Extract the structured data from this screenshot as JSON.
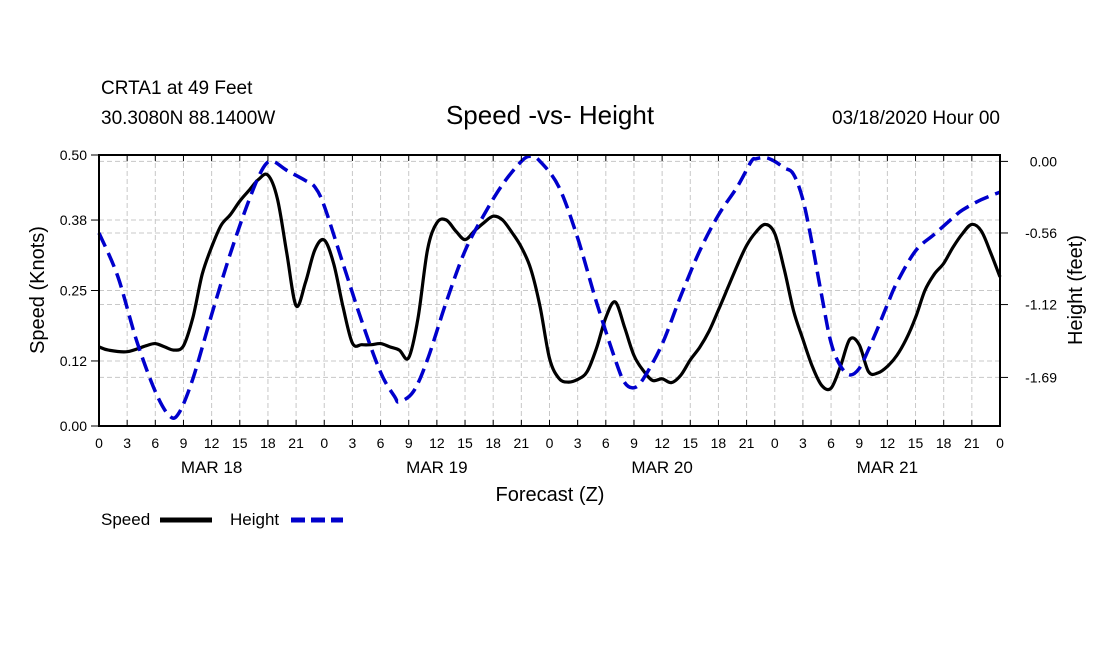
{
  "header": {
    "station": "CRTA1 at 49 Feet",
    "location": "30.3080N 88.1400W",
    "title": "Speed -vs- Height",
    "issued": "03/18/2020 Hour 00"
  },
  "colors": {
    "speed": "#000000",
    "height": "#0000cc",
    "grid": "#c8c8c8"
  },
  "chart_data": {
    "type": "line",
    "title": "Speed -vs- Height",
    "xlabel": "Forecast (Z)",
    "ylabel": "Speed (Knots)",
    "y2label": "Height (feet)",
    "xlim": [
      0,
      96
    ],
    "ylim": [
      0,
      0.5
    ],
    "y2lim": [
      -2.07,
      0.05
    ],
    "x_ticks": [
      0,
      3,
      6,
      9,
      12,
      15,
      18,
      21,
      24,
      27,
      30,
      33,
      36,
      39,
      42,
      45,
      48,
      51,
      54,
      57,
      60,
      63,
      66,
      69,
      72,
      75,
      78,
      81,
      84,
      87,
      90,
      93,
      96
    ],
    "x_tick_labels": [
      "0",
      "3",
      "6",
      "9",
      "12",
      "15",
      "18",
      "21",
      "0",
      "3",
      "6",
      "9",
      "12",
      "15",
      "18",
      "21",
      "0",
      "3",
      "6",
      "9",
      "12",
      "15",
      "18",
      "21",
      "0",
      "3",
      "6",
      "9",
      "12",
      "15",
      "18",
      "21",
      "0"
    ],
    "day_labels": [
      {
        "x": 12,
        "label": "MAR 18"
      },
      {
        "x": 36,
        "label": "MAR 19"
      },
      {
        "x": 60,
        "label": "MAR 20"
      },
      {
        "x": 84,
        "label": "MAR 21"
      }
    ],
    "y_ticks": [
      0.0,
      0.12,
      0.25,
      0.38,
      0.5
    ],
    "y_tick_labels": [
      "0.00",
      "0.12",
      "0.25",
      "0.38",
      "0.50"
    ],
    "y2_ticks": [
      0.0,
      -0.56,
      -1.12,
      -1.69
    ],
    "y2_tick_labels": [
      "0.00",
      "-0.56",
      "-1.12",
      "-1.69"
    ],
    "series": [
      {
        "name": "Speed",
        "axis": "left",
        "style": "solid",
        "points": [
          [
            0,
            0.146
          ],
          [
            1,
            0.14
          ],
          [
            3,
            0.137
          ],
          [
            5,
            0.148
          ],
          [
            6,
            0.152
          ],
          [
            7,
            0.146
          ],
          [
            8,
            0.14
          ],
          [
            9,
            0.148
          ],
          [
            10,
            0.2
          ],
          [
            11,
            0.28
          ],
          [
            12,
            0.33
          ],
          [
            13,
            0.37
          ],
          [
            14,
            0.39
          ],
          [
            15,
            0.415
          ],
          [
            16,
            0.435
          ],
          [
            17,
            0.455
          ],
          [
            18,
            0.463
          ],
          [
            19,
            0.42
          ],
          [
            20,
            0.32
          ],
          [
            21,
            0.222
          ],
          [
            22,
            0.265
          ],
          [
            23,
            0.325
          ],
          [
            24,
            0.343
          ],
          [
            25,
            0.3
          ],
          [
            26,
            0.22
          ],
          [
            27,
            0.153
          ],
          [
            28,
            0.15
          ],
          [
            29,
            0.15
          ],
          [
            30,
            0.152
          ],
          [
            31,
            0.146
          ],
          [
            32,
            0.14
          ],
          [
            33,
            0.126
          ],
          [
            34,
            0.2
          ],
          [
            35,
            0.325
          ],
          [
            36,
            0.375
          ],
          [
            37,
            0.38
          ],
          [
            38,
            0.36
          ],
          [
            39,
            0.344
          ],
          [
            40,
            0.36
          ],
          [
            41,
            0.375
          ],
          [
            42,
            0.387
          ],
          [
            43,
            0.38
          ],
          [
            44,
            0.357
          ],
          [
            45,
            0.33
          ],
          [
            46,
            0.29
          ],
          [
            47,
            0.22
          ],
          [
            48,
            0.125
          ],
          [
            49,
            0.088
          ],
          [
            50,
            0.081
          ],
          [
            51,
            0.086
          ],
          [
            52,
            0.1
          ],
          [
            53,
            0.143
          ],
          [
            54,
            0.2
          ],
          [
            55,
            0.229
          ],
          [
            56,
            0.182
          ],
          [
            57,
            0.13
          ],
          [
            58,
            0.102
          ],
          [
            59,
            0.084
          ],
          [
            60,
            0.087
          ],
          [
            61,
            0.08
          ],
          [
            62,
            0.094
          ],
          [
            63,
            0.122
          ],
          [
            64,
            0.145
          ],
          [
            65,
            0.175
          ],
          [
            66,
            0.214
          ],
          [
            67,
            0.255
          ],
          [
            68,
            0.296
          ],
          [
            69,
            0.333
          ],
          [
            70,
            0.358
          ],
          [
            71,
            0.372
          ],
          [
            72,
            0.355
          ],
          [
            73,
            0.29
          ],
          [
            74,
            0.213
          ],
          [
            75,
            0.16
          ],
          [
            76,
            0.11
          ],
          [
            77,
            0.075
          ],
          [
            78,
            0.07
          ],
          [
            79,
            0.11
          ],
          [
            80,
            0.16
          ],
          [
            81,
            0.15
          ],
          [
            82,
            0.1
          ],
          [
            83,
            0.098
          ],
          [
            84,
            0.11
          ],
          [
            85,
            0.13
          ],
          [
            86,
            0.16
          ],
          [
            87,
            0.2
          ],
          [
            88,
            0.25
          ],
          [
            89,
            0.28
          ],
          [
            90,
            0.3
          ],
          [
            91,
            0.33
          ],
          [
            92,
            0.355
          ],
          [
            93,
            0.372
          ],
          [
            94,
            0.36
          ],
          [
            95,
            0.32
          ],
          [
            96,
            0.275
          ]
        ]
      },
      {
        "name": "Height",
        "axis": "right",
        "style": "dashed",
        "points": [
          [
            0,
            -0.56
          ],
          [
            2,
            -0.9
          ],
          [
            4,
            -1.4
          ],
          [
            6,
            -1.8
          ],
          [
            7.5,
            -1.99
          ],
          [
            8.5,
            -1.97
          ],
          [
            10,
            -1.7
          ],
          [
            12,
            -1.2
          ],
          [
            14,
            -0.72
          ],
          [
            16,
            -0.3
          ],
          [
            17.5,
            -0.05
          ],
          [
            18.5,
            0.0
          ],
          [
            20,
            -0.07
          ],
          [
            22,
            -0.15
          ],
          [
            23,
            -0.2
          ],
          [
            24,
            -0.35
          ],
          [
            26,
            -0.8
          ],
          [
            28,
            -1.25
          ],
          [
            30,
            -1.65
          ],
          [
            31.5,
            -1.84
          ],
          [
            32,
            -1.88
          ],
          [
            33.5,
            -1.8
          ],
          [
            35,
            -1.55
          ],
          [
            37,
            -1.1
          ],
          [
            39,
            -0.7
          ],
          [
            41,
            -0.42
          ],
          [
            43,
            -0.18
          ],
          [
            45,
            0.0
          ],
          [
            46,
            0.04
          ],
          [
            47,
            0.0
          ],
          [
            49,
            -0.2
          ],
          [
            51,
            -0.6
          ],
          [
            53,
            -1.1
          ],
          [
            55,
            -1.55
          ],
          [
            56,
            -1.73
          ],
          [
            57,
            -1.77
          ],
          [
            58,
            -1.7
          ],
          [
            60,
            -1.43
          ],
          [
            62,
            -1.05
          ],
          [
            64,
            -0.7
          ],
          [
            66,
            -0.42
          ],
          [
            68,
            -0.2
          ],
          [
            69.5,
            0.0
          ],
          [
            70,
            0.02
          ],
          [
            71,
            0.03
          ],
          [
            72,
            0.0
          ],
          [
            73,
            -0.05
          ],
          [
            74,
            -0.1
          ],
          [
            75,
            -0.3
          ],
          [
            76,
            -0.65
          ],
          [
            77,
            -1.05
          ],
          [
            78,
            -1.42
          ],
          [
            79,
            -1.6
          ],
          [
            80,
            -1.67
          ],
          [
            81,
            -1.62
          ],
          [
            82,
            -1.47
          ],
          [
            83,
            -1.3
          ],
          [
            84,
            -1.12
          ],
          [
            85,
            -0.95
          ],
          [
            87,
            -0.7
          ],
          [
            89,
            -0.57
          ],
          [
            91,
            -0.44
          ],
          [
            92,
            -0.38
          ],
          [
            94,
            -0.3
          ],
          [
            96,
            -0.24
          ]
        ]
      }
    ],
    "legend": {
      "position": "bottom-left",
      "entries": [
        "Speed",
        "Height"
      ]
    }
  }
}
